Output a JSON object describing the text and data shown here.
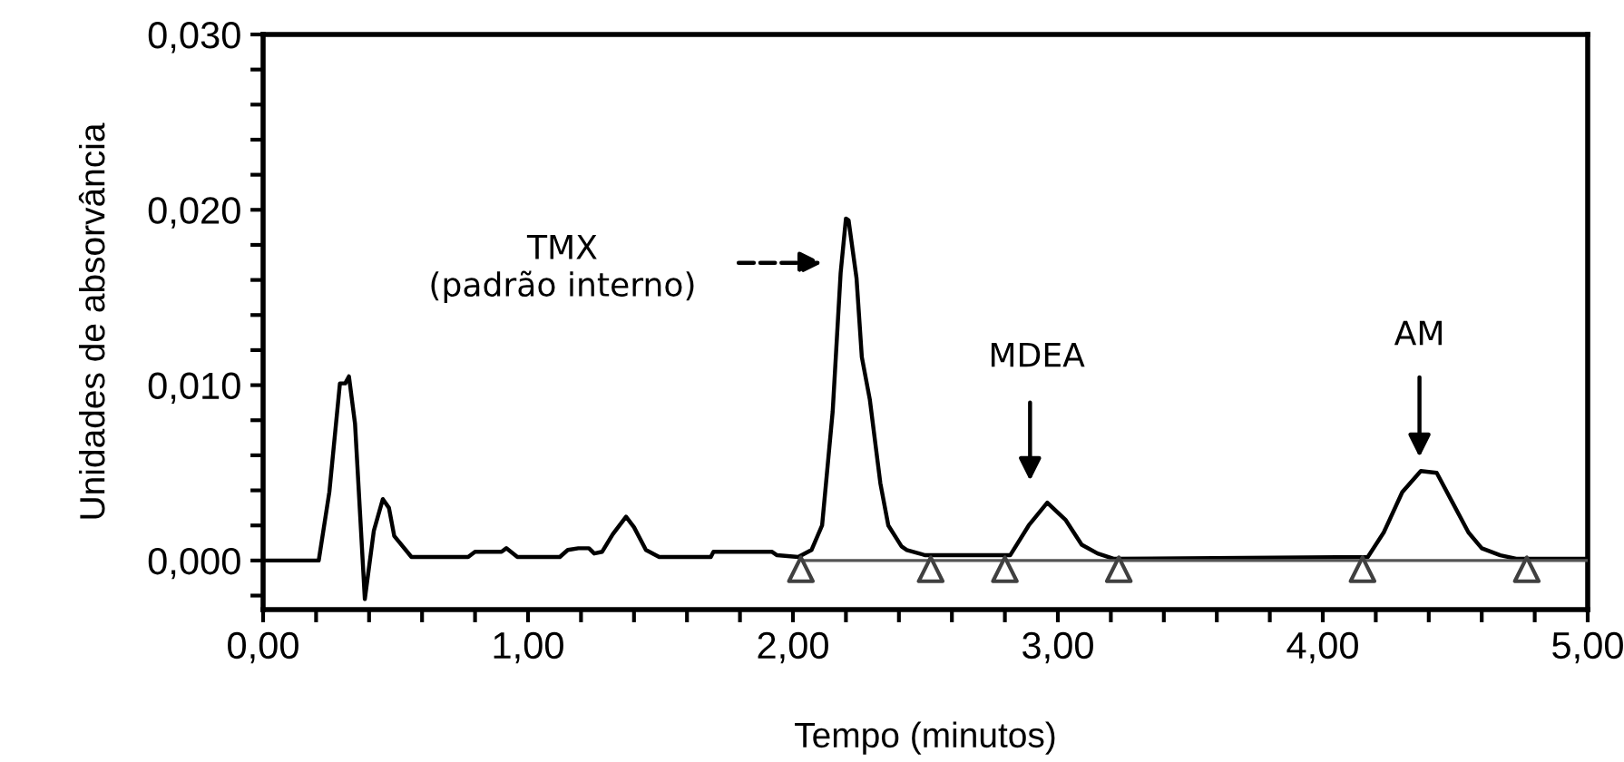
{
  "chart_data": {
    "type": "line",
    "xlabel": "Tempo (minutos)",
    "ylabel": "Unidades de absorvância",
    "xlim": [
      0,
      5
    ],
    "ylim": [
      -0.0028,
      0.03
    ],
    "xticks": [
      {
        "value": 0,
        "label": "0,00"
      },
      {
        "value": 0.2,
        "label": null
      },
      {
        "value": 0.4,
        "label": null
      },
      {
        "value": 0.6,
        "label": null
      },
      {
        "value": 0.8,
        "label": null
      },
      {
        "value": 1,
        "label": "1,00"
      },
      {
        "value": 1.2,
        "label": null
      },
      {
        "value": 1.4,
        "label": null
      },
      {
        "value": 1.6,
        "label": null
      },
      {
        "value": 1.8,
        "label": null
      },
      {
        "value": 2,
        "label": "2,00"
      },
      {
        "value": 2.2,
        "label": null
      },
      {
        "value": 2.4,
        "label": null
      },
      {
        "value": 2.6,
        "label": null
      },
      {
        "value": 2.8,
        "label": null
      },
      {
        "value": 3,
        "label": "3,00"
      },
      {
        "value": 3.2,
        "label": null
      },
      {
        "value": 3.4,
        "label": null
      },
      {
        "value": 3.6,
        "label": null
      },
      {
        "value": 3.8,
        "label": null
      },
      {
        "value": 4,
        "label": "4,00"
      },
      {
        "value": 4.2,
        "label": null
      },
      {
        "value": 4.4,
        "label": null
      },
      {
        "value": 4.6,
        "label": null
      },
      {
        "value": 4.8,
        "label": null
      },
      {
        "value": 5,
        "label": "5,00"
      }
    ],
    "yticks": [
      {
        "value": -0.002,
        "label": null
      },
      {
        "value": 0,
        "label": "0,000"
      },
      {
        "value": 0.002,
        "label": null
      },
      {
        "value": 0.004,
        "label": null
      },
      {
        "value": 0.006,
        "label": null
      },
      {
        "value": 0.008,
        "label": null
      },
      {
        "value": 0.01,
        "label": "0,010"
      },
      {
        "value": 0.012,
        "label": null
      },
      {
        "value": 0.014,
        "label": null
      },
      {
        "value": 0.016,
        "label": null
      },
      {
        "value": 0.018,
        "label": null
      },
      {
        "value": 0.02,
        "label": "0,020"
      },
      {
        "value": 0.022,
        "label": null
      },
      {
        "value": 0.024,
        "label": null
      },
      {
        "value": 0.026,
        "label": null
      },
      {
        "value": 0.028,
        "label": null
      },
      {
        "value": 0.03,
        "label": "0,030"
      }
    ],
    "grid": false,
    "series": [
      {
        "color": "#000000",
        "marker": "none",
        "line_style": "solid",
        "x": [
          0,
          0.21,
          0.25,
          0.29,
          0.31,
          0.324,
          0.347,
          0.384,
          0.418,
          0.452,
          0.475,
          0.495,
          0.56,
          0.774,
          0.8,
          0.9,
          0.918,
          0.96,
          1.12,
          1.15,
          1.19,
          1.23,
          1.25,
          1.28,
          1.32,
          1.37,
          1.4,
          1.445,
          1.495,
          1.69,
          1.7,
          1.92,
          1.94,
          2.02,
          2.07,
          2.11,
          2.15,
          2.18,
          2.2,
          2.21,
          2.24,
          2.26,
          2.29,
          2.33,
          2.36,
          2.41,
          2.43,
          2.5,
          2.82,
          2.89,
          2.96,
          3.03,
          3.09,
          3.15,
          3.21,
          4.17,
          4.23,
          4.3,
          4.37,
          4.43,
          4.49,
          4.55,
          4.6,
          4.67,
          4.73,
          5.0
        ],
        "values": [
          0,
          0,
          0.0039,
          0.0101,
          0.0101,
          0.0105,
          0.0078,
          -0.0022,
          0.0017,
          0.0035,
          0.003,
          0.0014,
          0.0002,
          0.0002,
          0.0005,
          0.0005,
          0.0007,
          0.0002,
          0.0002,
          0.0006,
          0.0007,
          0.0007,
          0.0004,
          0.0005,
          0.0015,
          0.0025,
          0.0019,
          0.0006,
          0.0002,
          0.0002,
          0.0005,
          0.0005,
          0.0003,
          0.0002,
          0.0006,
          0.002,
          0.0085,
          0.0164,
          0.0195,
          0.0194,
          0.0161,
          0.0116,
          0.0092,
          0.0044,
          0.002,
          0.0008,
          0.0006,
          0.0003,
          0.0003,
          0.002,
          0.0033,
          0.0023,
          0.0009,
          0.0004,
          0.0001,
          0.0002,
          0.0016,
          0.0039,
          0.0051,
          0.005,
          0.0033,
          0.0016,
          0.0007,
          0.0003,
          0.0001,
          0.0001
        ]
      },
      {
        "type": "line",
        "color": "#555555",
        "marker": "none",
        "line_style": "solid",
        "x": [
          2.03,
          5.0
        ],
        "values": [
          0,
          0
        ]
      },
      {
        "type": "scatter",
        "color": "#404040",
        "marker": "triangle",
        "x": [
          2.03,
          2.52,
          2.8,
          3.23,
          4.15,
          4.77
        ],
        "values": [
          -0.0005,
          -0.0005,
          -0.0005,
          -0.0005,
          -0.0005,
          -0.0005
        ]
      }
    ],
    "annotations": [
      "TMX\n(padrão interno)",
      "MDEA",
      "AM"
    ]
  }
}
